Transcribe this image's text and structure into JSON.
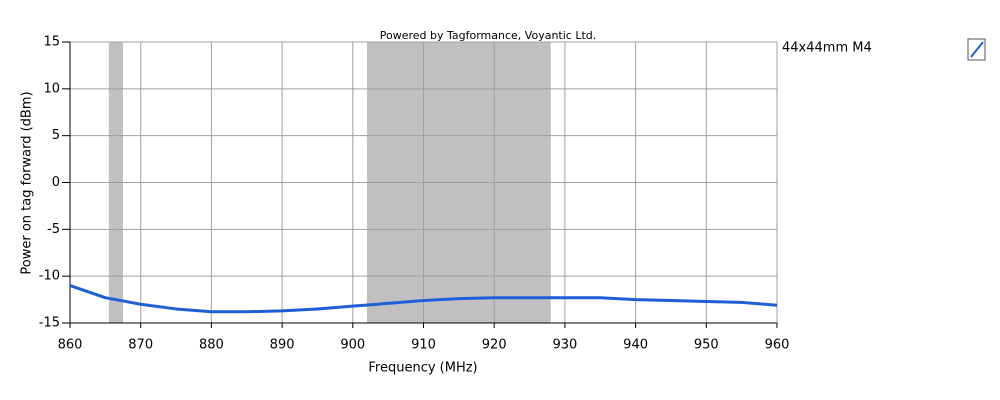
{
  "chart_data": {
    "type": "line",
    "annotation": "Powered by Tagformance, Voyantic Ltd.",
    "xlabel": "Frequency (MHz)",
    "ylabel": "Power on tag forward (dBm)",
    "x": [
      860,
      865,
      870,
      875,
      880,
      885,
      890,
      895,
      900,
      905,
      910,
      915,
      920,
      925,
      930,
      935,
      940,
      945,
      950,
      955,
      960
    ],
    "series": [
      {
        "name": "44x44mm M4",
        "color": "#1f5fd6",
        "values": [
          -11.0,
          -12.3,
          -13.0,
          -13.5,
          -13.8,
          -13.8,
          -13.7,
          -13.5,
          -13.2,
          -12.9,
          -12.6,
          -12.4,
          -12.3,
          -12.3,
          -12.3,
          -12.3,
          -12.5,
          -12.6,
          -12.7,
          -12.8,
          -13.1
        ]
      }
    ],
    "bands": [
      [
        865.5,
        867.5
      ],
      [
        902,
        928
      ]
    ],
    "band_color": "#c0c0c0",
    "xlim": [
      860,
      960
    ],
    "ylim": [
      -15,
      15
    ],
    "xticks": [
      860,
      870,
      880,
      890,
      900,
      910,
      920,
      930,
      940,
      950,
      960
    ],
    "yticks": [
      -15,
      -10,
      -5,
      0,
      5,
      10,
      15
    ],
    "grid": true
  }
}
